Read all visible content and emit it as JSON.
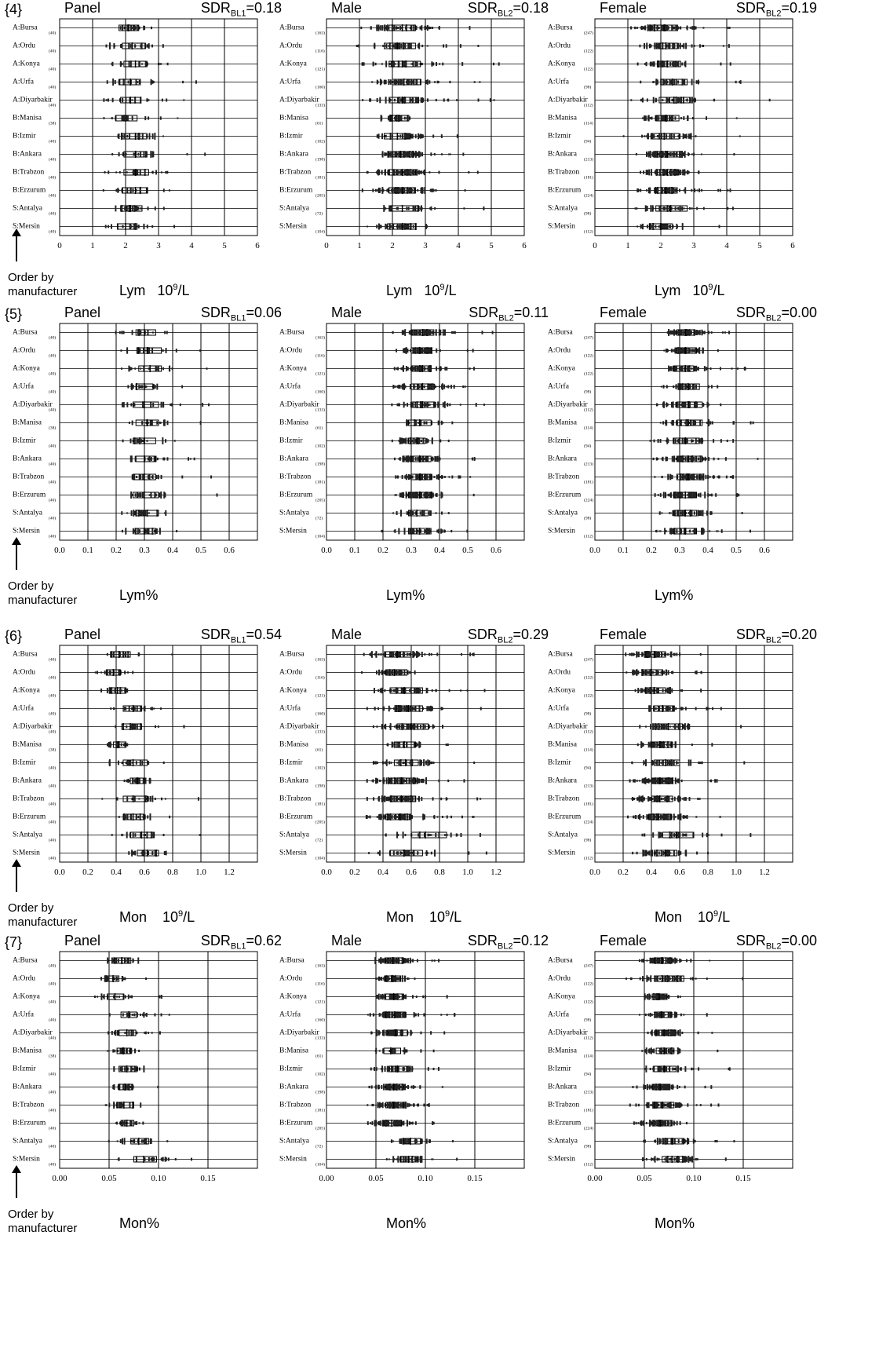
{
  "order_note": "Order by\nmanufacturer",
  "categories": [
    "A:Bursa",
    "A:Ordu",
    "A:Konya",
    "A:Urfa",
    "A:Diyarbakir",
    "B:Manisa",
    "B:Izmir",
    "B:Ankara",
    "B:Trabzon",
    "B:Erzurum",
    "S:Antalya",
    "S:Mersin"
  ],
  "chart_data": [
    {
      "type": "box",
      "row": "{4}",
      "panel": "Panel",
      "sdr_prefix": "SDR",
      "sdr_sub": "BL1",
      "sdr_value": "=0.18",
      "xlabel_main": "Lym   10",
      "xlabel_sup": "9",
      "xlabel_tail": "/L",
      "xlim": [
        0,
        6
      ],
      "xticks": [
        "0",
        "1",
        "2",
        "3",
        "4",
        "5",
        "6"
      ],
      "n": [
        "(40)",
        "(40)",
        "(40)",
        "(40)",
        "(40)",
        "(38)",
        "(40)",
        "(40)",
        "(40)",
        "(40)",
        "(40)",
        "(40)"
      ],
      "boxes": [
        [
          1.8,
          2.1,
          2.4
        ],
        [
          1.9,
          2.2,
          2.6
        ],
        [
          1.95,
          2.3,
          2.65
        ],
        [
          1.8,
          2.15,
          2.45
        ],
        [
          1.85,
          2.15,
          2.45
        ],
        [
          1.7,
          2.0,
          2.35
        ],
        [
          1.9,
          2.3,
          2.65
        ],
        [
          1.95,
          2.3,
          2.65
        ],
        [
          1.95,
          2.3,
          2.7
        ],
        [
          1.9,
          2.3,
          2.65
        ],
        [
          1.85,
          2.15,
          2.5
        ],
        [
          1.75,
          2.0,
          2.35
        ]
      ]
    },
    {
      "type": "box",
      "row": "{4}",
      "panel": "Male",
      "sdr_prefix": "SDR",
      "sdr_sub": "BL2",
      "sdr_value": "=0.18",
      "xlabel_main": "Lym   10",
      "xlabel_sup": "9",
      "xlabel_tail": "/L",
      "xlim": [
        0,
        6
      ],
      "xticks": [
        "0",
        "1",
        "2",
        "3",
        "4",
        "5",
        "6"
      ],
      "n": [
        "(163)",
        "(116)",
        "(121)",
        "(160)",
        "(133)",
        "(61)",
        "(102)",
        "(198)",
        "(181)",
        "(205)",
        "(72)",
        "(104)"
      ],
      "boxes": [
        [
          1.9,
          2.3,
          2.7
        ],
        [
          1.75,
          2.15,
          2.7
        ],
        [
          1.9,
          2.3,
          2.85
        ],
        [
          2.0,
          2.35,
          2.85
        ],
        [
          1.9,
          2.3,
          2.8
        ],
        [
          1.95,
          2.2,
          2.5
        ],
        [
          1.75,
          2.15,
          2.55
        ],
        [
          1.9,
          2.25,
          2.65
        ],
        [
          1.9,
          2.3,
          2.7
        ],
        [
          1.9,
          2.3,
          2.7
        ],
        [
          1.9,
          2.3,
          2.8
        ],
        [
          1.85,
          2.3,
          2.7
        ]
      ]
    },
    {
      "type": "box",
      "row": "{4}",
      "panel": "Female",
      "sdr_prefix": "SDR",
      "sdr_sub": "BL2",
      "sdr_value": "=0.19",
      "xlabel_main": "Lym   10",
      "xlabel_sup": "9",
      "xlabel_tail": "/L",
      "xlim": [
        0,
        6
      ],
      "xticks": [
        "0",
        "1",
        "2",
        "3",
        "4",
        "5",
        "6"
      ],
      "n": [
        "(247)",
        "(122)",
        "(122)",
        "(98)",
        "(112)",
        "(114)",
        "(94)",
        "(213)",
        "(181)",
        "(224)",
        "(98)",
        "(112)"
      ],
      "boxes": [
        [
          1.7,
          2.1,
          2.45
        ],
        [
          1.8,
          2.15,
          2.5
        ],
        [
          1.9,
          2.2,
          2.6
        ],
        [
          2.0,
          2.35,
          2.8
        ],
        [
          1.95,
          2.4,
          2.9
        ],
        [
          1.85,
          2.15,
          2.55
        ],
        [
          1.7,
          2.1,
          2.55
        ],
        [
          1.9,
          2.2,
          2.6
        ],
        [
          1.9,
          2.2,
          2.55
        ],
        [
          1.85,
          2.15,
          2.5
        ],
        [
          1.85,
          2.3,
          2.8
        ],
        [
          1.65,
          2.0,
          2.35
        ]
      ]
    },
    {
      "type": "box",
      "row": "{5}",
      "panel": "Panel",
      "sdr_prefix": "SDR",
      "sdr_sub": "BL1",
      "sdr_value": "=0.06",
      "xlabel_main": "Lym%",
      "xlabel_sup": "",
      "xlabel_tail": "",
      "xlim": [
        0,
        0.7
      ],
      "xticks": [
        "0.0",
        "0.1",
        "0.2",
        "0.3",
        "0.4",
        "0.5",
        "0.6"
      ],
      "n": [
        "(40)",
        "(40)",
        "(40)",
        "(40)",
        "(40)",
        "(38)",
        "(40)",
        "(40)",
        "(40)",
        "(40)",
        "(40)",
        "(40)"
      ],
      "boxes": [
        [
          0.27,
          0.3,
          0.34
        ],
        [
          0.28,
          0.31,
          0.36
        ],
        [
          0.28,
          0.32,
          0.36
        ],
        [
          0.27,
          0.3,
          0.33
        ],
        [
          0.26,
          0.3,
          0.35
        ],
        [
          0.27,
          0.31,
          0.35
        ],
        [
          0.26,
          0.3,
          0.34
        ],
        [
          0.27,
          0.3,
          0.34
        ],
        [
          0.26,
          0.3,
          0.34
        ],
        [
          0.26,
          0.3,
          0.35
        ],
        [
          0.27,
          0.31,
          0.35
        ],
        [
          0.27,
          0.3,
          0.34
        ]
      ]
    },
    {
      "type": "box",
      "row": "{5}",
      "panel": "Male",
      "sdr_prefix": "SDR",
      "sdr_sub": "BL2",
      "sdr_value": "=0.11",
      "xlabel_main": "Lym%",
      "xlabel_sup": "",
      "xlabel_tail": "",
      "xlim": [
        0,
        0.7
      ],
      "xticks": [
        "0.0",
        "0.1",
        "0.2",
        "0.3",
        "0.4",
        "0.5",
        "0.6"
      ],
      "n": [
        "(163)",
        "(116)",
        "(121)",
        "(160)",
        "(133)",
        "(61)",
        "(102)",
        "(198)",
        "(181)",
        "(205)",
        "(72)",
        "(104)"
      ],
      "boxes": [
        [
          0.3,
          0.34,
          0.38
        ],
        [
          0.3,
          0.33,
          0.37
        ],
        [
          0.3,
          0.34,
          0.37
        ],
        [
          0.3,
          0.34,
          0.38
        ],
        [
          0.3,
          0.34,
          0.38
        ],
        [
          0.29,
          0.33,
          0.37
        ],
        [
          0.29,
          0.32,
          0.35
        ],
        [
          0.3,
          0.33,
          0.37
        ],
        [
          0.3,
          0.33,
          0.37
        ],
        [
          0.29,
          0.33,
          0.37
        ],
        [
          0.29,
          0.32,
          0.36
        ],
        [
          0.29,
          0.33,
          0.37
        ]
      ]
    },
    {
      "type": "box",
      "row": "{5}",
      "panel": "Female",
      "sdr_prefix": "SDR",
      "sdr_sub": "BL2",
      "sdr_value": "=0.00",
      "xlabel_main": "Lym%",
      "xlabel_sup": "",
      "xlabel_tail": "",
      "xlim": [
        0,
        0.7
      ],
      "xticks": [
        "0.0",
        "0.1",
        "0.2",
        "0.3",
        "0.4",
        "0.5",
        "0.6"
      ],
      "n": [
        "(247)",
        "(122)",
        "(122)",
        "(98)",
        "(112)",
        "(114)",
        "(94)",
        "(213)",
        "(181)",
        "(224)",
        "(98)",
        "(112)"
      ],
      "boxes": [
        [
          0.29,
          0.32,
          0.35
        ],
        [
          0.29,
          0.32,
          0.36
        ],
        [
          0.28,
          0.32,
          0.35
        ],
        [
          0.3,
          0.33,
          0.37
        ],
        [
          0.29,
          0.33,
          0.38
        ],
        [
          0.29,
          0.33,
          0.38
        ],
        [
          0.28,
          0.32,
          0.37
        ],
        [
          0.29,
          0.33,
          0.38
        ],
        [
          0.29,
          0.33,
          0.37
        ],
        [
          0.28,
          0.32,
          0.36
        ],
        [
          0.28,
          0.32,
          0.36
        ],
        [
          0.28,
          0.32,
          0.36
        ]
      ]
    },
    {
      "type": "box",
      "row": "{6}",
      "panel": "Panel",
      "sdr_prefix": "SDR",
      "sdr_sub": "BL1",
      "sdr_value": "=0.54",
      "xlabel_main": "Mon    10",
      "xlabel_sup": "9",
      "xlabel_tail": "/L",
      "xlim": [
        0,
        1.4
      ],
      "xticks": [
        "0.0",
        "0.2",
        "0.4",
        "0.6",
        "0.8",
        "1.0",
        "1.2"
      ],
      "n": [
        "(40)",
        "(40)",
        "(40)",
        "(40)",
        "(40)",
        "(38)",
        "(40)",
        "(40)",
        "(40)",
        "(40)",
        "(40)",
        "(40)"
      ],
      "boxes": [
        [
          0.36,
          0.42,
          0.5
        ],
        [
          0.33,
          0.38,
          0.43
        ],
        [
          0.36,
          0.41,
          0.47
        ],
        [
          0.45,
          0.52,
          0.58
        ],
        [
          0.44,
          0.5,
          0.58
        ],
        [
          0.38,
          0.42,
          0.47
        ],
        [
          0.45,
          0.52,
          0.62
        ],
        [
          0.5,
          0.55,
          0.6
        ],
        [
          0.45,
          0.52,
          0.62
        ],
        [
          0.45,
          0.52,
          0.6
        ],
        [
          0.5,
          0.58,
          0.67
        ],
        [
          0.55,
          0.62,
          0.7
        ]
      ]
    },
    {
      "type": "box",
      "row": "{6}",
      "panel": "Male",
      "sdr_prefix": "SDR",
      "sdr_sub": "BL2",
      "sdr_value": "=0.29",
      "xlabel_main": "Mon    10",
      "xlabel_sup": "9",
      "xlabel_tail": "/L",
      "xlim": [
        0,
        1.4
      ],
      "xticks": [
        "0.0",
        "0.2",
        "0.4",
        "0.6",
        "0.8",
        "1.0",
        "1.2"
      ],
      "n": [
        "(163)",
        "(116)",
        "(121)",
        "(160)",
        "(133)",
        "(61)",
        "(102)",
        "(198)",
        "(181)",
        "(205)",
        "(72)",
        "(104)"
      ],
      "boxes": [
        [
          0.42,
          0.5,
          0.6
        ],
        [
          0.42,
          0.48,
          0.57
        ],
        [
          0.45,
          0.55,
          0.68
        ],
        [
          0.5,
          0.58,
          0.68
        ],
        [
          0.5,
          0.6,
          0.72
        ],
        [
          0.48,
          0.55,
          0.63
        ],
        [
          0.48,
          0.56,
          0.65
        ],
        [
          0.45,
          0.53,
          0.63
        ],
        [
          0.45,
          0.53,
          0.63
        ],
        [
          0.42,
          0.52,
          0.6
        ],
        [
          0.6,
          0.7,
          0.85
        ],
        [
          0.45,
          0.55,
          0.68
        ]
      ]
    },
    {
      "type": "box",
      "row": "{6}",
      "panel": "Female",
      "sdr_prefix": "SDR",
      "sdr_sub": "BL2",
      "sdr_value": "=0.20",
      "xlabel_main": "Mon    10",
      "xlabel_sup": "9",
      "xlabel_tail": "/L",
      "xlim": [
        0,
        1.4
      ],
      "xticks": [
        "0.0",
        "0.2",
        "0.4",
        "0.6",
        "0.8",
        "1.0",
        "1.2"
      ],
      "n": [
        "(247)",
        "(122)",
        "(122)",
        "(98)",
        "(112)",
        "(114)",
        "(94)",
        "(213)",
        "(181)",
        "(224)",
        "(98)",
        "(112)"
      ],
      "boxes": [
        [
          0.36,
          0.42,
          0.5
        ],
        [
          0.34,
          0.4,
          0.48
        ],
        [
          0.36,
          0.42,
          0.5
        ],
        [
          0.42,
          0.48,
          0.56
        ],
        [
          0.44,
          0.52,
          0.62
        ],
        [
          0.4,
          0.46,
          0.54
        ],
        [
          0.42,
          0.5,
          0.6
        ],
        [
          0.4,
          0.46,
          0.55
        ],
        [
          0.4,
          0.46,
          0.55
        ],
        [
          0.38,
          0.45,
          0.54
        ],
        [
          0.48,
          0.58,
          0.7
        ],
        [
          0.42,
          0.5,
          0.58
        ]
      ]
    },
    {
      "type": "box",
      "row": "{7}",
      "panel": "Panel",
      "sdr_prefix": "SDR",
      "sdr_sub": "BL1",
      "sdr_value": "=0.62",
      "xlabel_main": "Mon%",
      "xlabel_sup": "",
      "xlabel_tail": "",
      "xlim": [
        0,
        0.2
      ],
      "xticks": [
        "0.00",
        "0.05",
        "0.10",
        "0.15"
      ],
      "n": [
        "(40)",
        "(40)",
        "(40)",
        "(40)",
        "(40)",
        "(38)",
        "(40)",
        "(40)",
        "(40)",
        "(40)",
        "(40)",
        "(40)"
      ],
      "boxes": [
        [
          0.055,
          0.063,
          0.072
        ],
        [
          0.048,
          0.054,
          0.06
        ],
        [
          0.048,
          0.056,
          0.065
        ],
        [
          0.062,
          0.07,
          0.078
        ],
        [
          0.06,
          0.068,
          0.077
        ],
        [
          0.058,
          0.064,
          0.072
        ],
        [
          0.06,
          0.068,
          0.078
        ],
        [
          0.06,
          0.066,
          0.074
        ],
        [
          0.058,
          0.065,
          0.075
        ],
        [
          0.062,
          0.068,
          0.075
        ],
        [
          0.072,
          0.08,
          0.09
        ],
        [
          0.075,
          0.085,
          0.098
        ]
      ]
    },
    {
      "type": "box",
      "row": "{7}",
      "panel": "Male",
      "sdr_prefix": "SDR",
      "sdr_sub": "BL2",
      "sdr_value": "=0.12",
      "xlabel_main": "Mon%",
      "xlabel_sup": "",
      "xlabel_tail": "",
      "xlim": [
        0,
        0.2
      ],
      "xticks": [
        "0.00",
        "0.05",
        "0.10",
        "0.15"
      ],
      "n": [
        "(163)",
        "(116)",
        "(121)",
        "(160)",
        "(133)",
        "(61)",
        "(102)",
        "(198)",
        "(181)",
        "(205)",
        "(72)",
        "(104)"
      ],
      "boxes": [
        [
          0.06,
          0.067,
          0.078
        ],
        [
          0.06,
          0.066,
          0.075
        ],
        [
          0.06,
          0.068,
          0.078
        ],
        [
          0.06,
          0.069,
          0.08
        ],
        [
          0.062,
          0.07,
          0.082
        ],
        [
          0.058,
          0.065,
          0.075
        ],
        [
          0.063,
          0.072,
          0.085
        ],
        [
          0.06,
          0.068,
          0.078
        ],
        [
          0.06,
          0.068,
          0.078
        ],
        [
          0.058,
          0.066,
          0.076
        ],
        [
          0.078,
          0.085,
          0.095
        ],
        [
          0.075,
          0.083,
          0.092
        ]
      ]
    },
    {
      "type": "box",
      "row": "{7}",
      "panel": "Female",
      "sdr_prefix": "SDR",
      "sdr_sub": "BL2",
      "sdr_value": "=0.00",
      "xlabel_main": "Mon%",
      "xlabel_sup": "",
      "xlabel_tail": "",
      "xlim": [
        0,
        0.2
      ],
      "xticks": [
        "0.00",
        "0.05",
        "0.10",
        "0.15"
      ],
      "n": [
        "(247)",
        "(122)",
        "(122)",
        "(98)",
        "(112)",
        "(114)",
        "(94)",
        "(213)",
        "(181)",
        "(224)",
        "(98)",
        "(112)"
      ],
      "boxes": [
        [
          0.06,
          0.068,
          0.078
        ],
        [
          0.06,
          0.068,
          0.09
        ],
        [
          0.058,
          0.065,
          0.073
        ],
        [
          0.06,
          0.067,
          0.077
        ],
        [
          0.062,
          0.07,
          0.082
        ],
        [
          0.062,
          0.07,
          0.08
        ],
        [
          0.06,
          0.07,
          0.082
        ],
        [
          0.058,
          0.066,
          0.076
        ],
        [
          0.06,
          0.068,
          0.08
        ],
        [
          0.058,
          0.066,
          0.078
        ],
        [
          0.068,
          0.078,
          0.09
        ],
        [
          0.068,
          0.078,
          0.09
        ]
      ]
    }
  ]
}
